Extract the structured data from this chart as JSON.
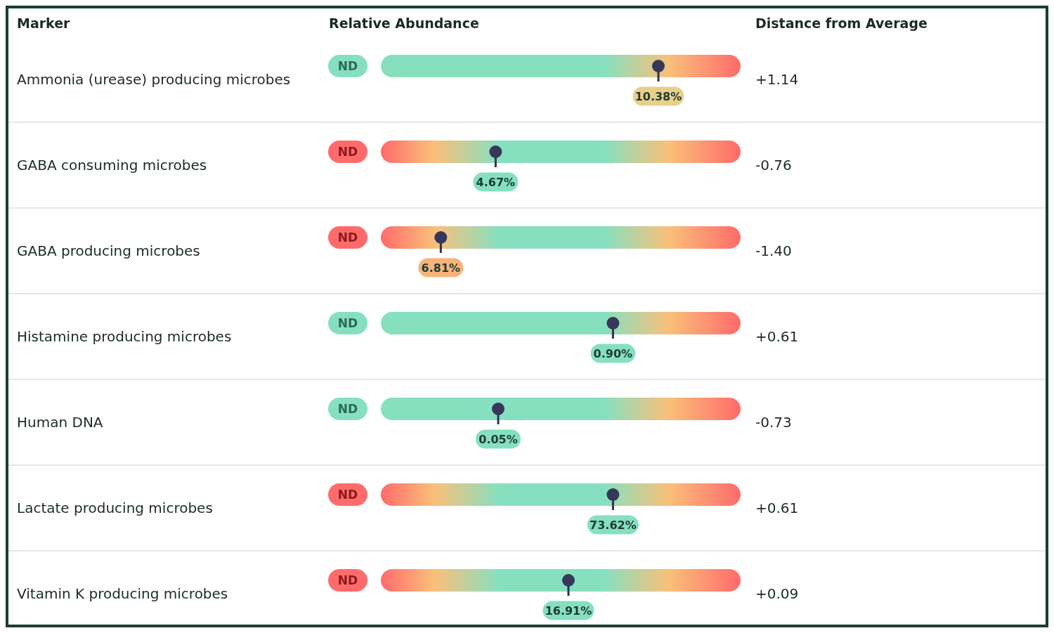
{
  "chart_data": {
    "type": "other",
    "ylabel": "Marker",
    "annotations": [
      "ND"
    ],
    "categories": [
      "Ammonia (urease) producing microbes",
      "GABA consuming microbes",
      "GABA producing microbes",
      "Histamine producing microbes",
      "Human DNA",
      "Lactate producing microbes",
      "Vitamin K producing microbes"
    ],
    "colors": [
      "#86e0c0",
      "#ff6b6b",
      "#ff6b6b",
      "#86e0c0",
      "#86e0c0",
      "#ff6b6b",
      "#ff6b6b"
    ],
    "series": [
      {
        "name": "Relative Abundance",
        "color": "#86e0c0",
        "values": [
          10.38,
          4.67,
          6.81,
          0.9,
          0.05,
          73.62,
          16.91
        ],
        "value_labels": [
          "10.38%",
          "4.67%",
          "6.81%",
          "0.90%",
          "0.05%",
          "73.62%",
          "16.91%"
        ],
        "colors": [
          "#e8cf8a",
          "#86e0c0",
          "#f8b37a",
          "#86e0c0",
          "#86e0c0",
          "#86e0c0",
          "#86e0c0"
        ]
      },
      {
        "name": "Distance from Average",
        "values": [
          1.14,
          -0.76,
          -1.4,
          0.61,
          -0.73,
          0.61,
          0.09
        ],
        "value_labels": [
          "+1.14",
          "-0.76",
          "-1.40",
          "+0.61",
          "-0.73",
          "+0.61",
          "+0.09"
        ]
      }
    ]
  }
}
